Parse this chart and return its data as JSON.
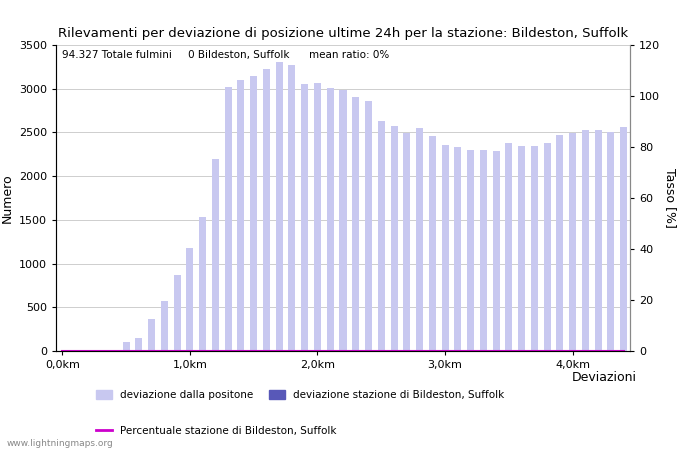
{
  "title": "Rilevamenti per deviazione di posizione ultime 24h per la stazione: Bildeston, Suffolk",
  "annotation": "94.327 Totale fulmini     0 Bildeston, Suffolk      mean ratio: 0%",
  "xlabel": "Deviazioni",
  "ylabel_left": "Numero",
  "ylabel_right": "Tasso [%]",
  "ylim_left": [
    0,
    3500
  ],
  "ylim_right": [
    0,
    120
  ],
  "yticks_left": [
    0,
    500,
    1000,
    1500,
    2000,
    2500,
    3000,
    3500
  ],
  "yticks_right": [
    0,
    20,
    40,
    60,
    80,
    100,
    120
  ],
  "xtick_labels": [
    "0,0km",
    "1,0km",
    "2,0km",
    "3,0km",
    "4,0km"
  ],
  "xtick_positions": [
    0,
    10,
    20,
    30,
    40
  ],
  "bar_color_light": "#c8c8f0",
  "bar_color_dark": "#5858b8",
  "line_color": "#cc00cc",
  "background_color": "#ffffff",
  "grid_color": "#bbbbbb",
  "watermark": "www.lightningmaps.org",
  "legend_label_light": "deviazione dalla positone",
  "legend_label_dark": "deviazione stazione di Bildeston, Suffolk",
  "legend_label_line": "Percentuale stazione di Bildeston, Suffolk",
  "bar_values": [
    0,
    0,
    0,
    0,
    0,
    100,
    150,
    370,
    570,
    870,
    1180,
    1530,
    2200,
    3020,
    3100,
    3150,
    3230,
    3300,
    3270,
    3050,
    3060,
    3010,
    2990,
    2900,
    2860,
    2630,
    2570,
    2490,
    2550,
    2460,
    2360,
    2330,
    2300,
    2300,
    2290,
    2380,
    2350,
    2350,
    2380,
    2470,
    2490,
    2530,
    2530,
    2510,
    2560
  ],
  "station_values": [
    0,
    0,
    0,
    0,
    0,
    0,
    0,
    0,
    0,
    0,
    0,
    0,
    0,
    0,
    0,
    0,
    0,
    0,
    0,
    0,
    0,
    0,
    0,
    0,
    0,
    0,
    0,
    0,
    0,
    0,
    0,
    0,
    0,
    0,
    0,
    0,
    0,
    0,
    0,
    0,
    0,
    0,
    0,
    0,
    0
  ],
  "percentage_values": [
    0,
    0,
    0,
    0,
    0,
    0,
    0,
    0,
    0,
    0,
    0,
    0,
    0,
    0,
    0,
    0,
    0,
    0,
    0,
    0,
    0,
    0,
    0,
    0,
    0,
    0,
    0,
    0,
    0,
    0,
    0,
    0,
    0,
    0,
    0,
    0,
    0,
    0,
    0,
    0,
    0,
    0,
    0,
    0,
    0
  ],
  "figsize": [
    7.0,
    4.5
  ],
  "dpi": 100
}
